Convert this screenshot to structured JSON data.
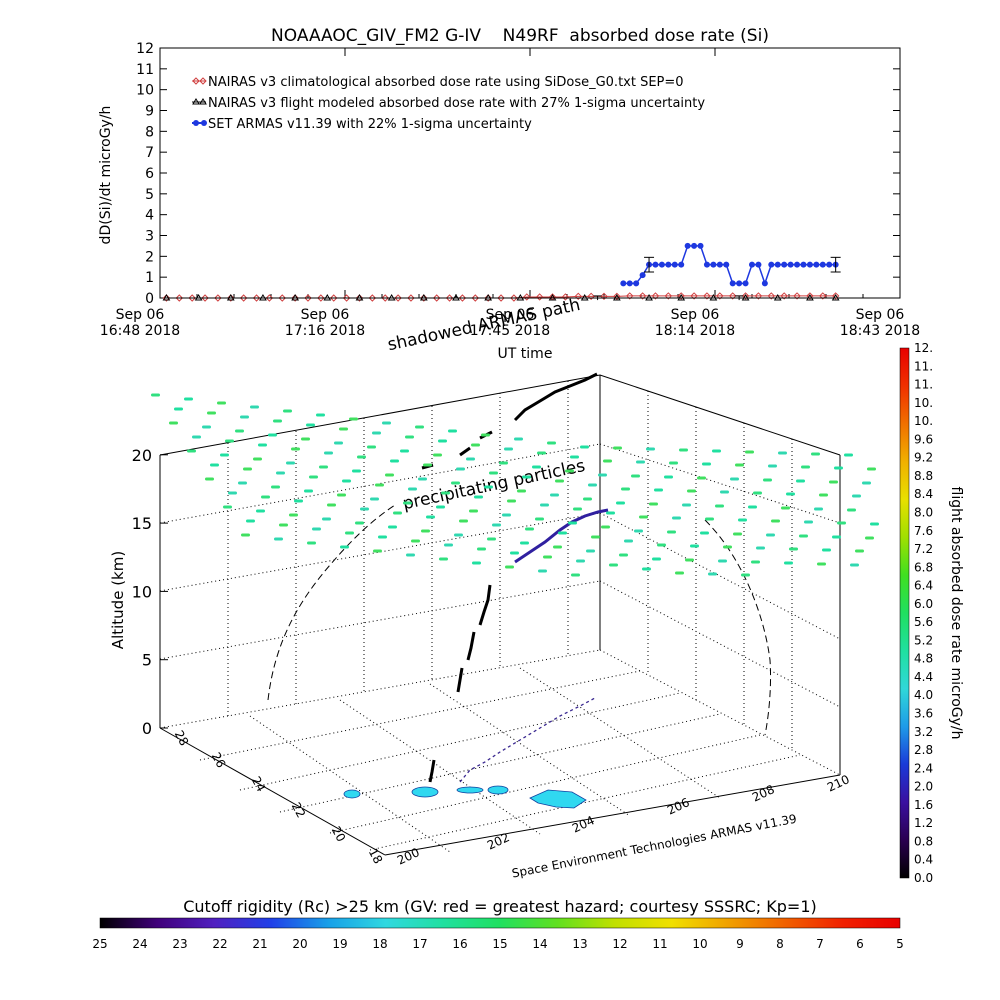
{
  "title": "NOAAAOC_GIV_FM2 G-IV    N49RF  absorbed dose rate (Si)",
  "chart_data": [
    {
      "type": "line",
      "ylabel": "dD(Si)/dt microGy/h",
      "xlabel": "UT time",
      "ylim": [
        0,
        12
      ],
      "yticks": [
        "0",
        "1",
        "2",
        "3",
        "4",
        "5",
        "6",
        "7",
        "8",
        "9",
        "10",
        "11",
        "12"
      ],
      "xticks": [
        {
          "date": "Sep 06",
          "time": "16:48 2018"
        },
        {
          "date": "Sep 06",
          "time": "17:16 2018"
        },
        {
          "date": "Sep 06",
          "time": "17:45 2018"
        },
        {
          "date": "Sep 06",
          "time": "18:14 2018"
        },
        {
          "date": "Sep 06",
          "time": "18:43 2018"
        }
      ],
      "xrange_minutes": [
        0,
        115
      ],
      "legend_position": "top-left",
      "series": [
        {
          "name": "NAIRAS v3 climatological absorbed dose rate using SiDose_G0.txt SEP=0",
          "color": "#d04040",
          "marker": "diamond",
          "x_minutes": [
            1,
            3,
            5,
            7,
            9,
            11,
            13,
            15,
            17,
            19,
            21,
            23,
            25,
            27,
            29,
            31,
            33,
            35,
            37,
            39,
            41,
            43,
            45,
            47,
            49,
            51,
            53,
            55,
            57,
            59,
            61,
            63,
            65,
            67,
            69,
            71,
            73,
            75,
            77,
            79,
            81,
            83,
            85,
            87,
            89,
            91,
            93,
            95,
            97,
            99,
            101,
            103,
            105
          ],
          "values": [
            0,
            0,
            0,
            0,
            0,
            0,
            0,
            0,
            0,
            0,
            0,
            0,
            0,
            0,
            0,
            0,
            0,
            0,
            0,
            0,
            0,
            0,
            0,
            0,
            0,
            0,
            0,
            0,
            0.05,
            0.05,
            0.05,
            0.05,
            0.08,
            0.08,
            0.08,
            0.08,
            0.1,
            0.1,
            0.1,
            0.1,
            0.1,
            0.1,
            0.1,
            0.1,
            0.1,
            0.1,
            0.1,
            0.1,
            0.1,
            0.1,
            0.1,
            0.1,
            0.1
          ]
        },
        {
          "name": "NAIRAS v3 flight modeled absorbed dose rate with 27% 1-sigma uncertainty",
          "color": "#000000",
          "marker": "triangle",
          "x_minutes": [
            1,
            6,
            11,
            16,
            21,
            26,
            31,
            36,
            41,
            46,
            51,
            56,
            61,
            66,
            71,
            76,
            81,
            86,
            91,
            96,
            101,
            105
          ],
          "values": [
            0,
            0,
            0,
            0,
            0,
            0,
            0,
            0,
            0,
            0,
            0,
            0,
            0,
            0,
            0,
            0,
            0,
            0,
            0,
            0,
            0,
            0
          ]
        },
        {
          "name": "SET ARMAS v11.39 with 22% 1-sigma uncertainty",
          "color": "#1e38e0",
          "marker": "circle",
          "x_minutes": [
            72,
            73,
            74,
            75,
            76,
            77,
            78,
            79,
            80,
            81,
            82,
            83,
            84,
            85,
            86,
            87,
            88,
            89,
            90,
            91,
            92,
            93,
            94,
            95,
            96,
            97,
            98,
            99,
            100,
            101,
            102,
            103,
            104,
            105
          ],
          "values": [
            0.7,
            0.7,
            0.7,
            1.1,
            1.6,
            1.6,
            1.6,
            1.6,
            1.6,
            1.6,
            2.5,
            2.5,
            2.5,
            1.6,
            1.6,
            1.6,
            1.6,
            0.7,
            0.7,
            0.7,
            1.6,
            1.6,
            0.7,
            1.6,
            1.6,
            1.6,
            1.6,
            1.6,
            1.6,
            1.6,
            1.6,
            1.6,
            1.6,
            1.6
          ],
          "error_bars_minutes": [
            76,
            105
          ],
          "error_22pct": true
        }
      ]
    },
    {
      "type": "scatter3d",
      "zlabel": "Altitude (km)",
      "zticks": [
        "0",
        "5",
        "10",
        "15",
        "20"
      ],
      "lat_ticks": [
        "18",
        "20",
        "22",
        "24",
        "26",
        "28"
      ],
      "lon_ticks": [
        "200",
        "202",
        "204",
        "206",
        "208",
        "210"
      ],
      "annotations": [
        "shadowed ARMAS path",
        "precipitating particles"
      ],
      "credit": "Space Environment Technologies ARMAS v11.39"
    }
  ],
  "right_colorbar": {
    "label": "flight absorbed dose rate microGy/h",
    "ticks": [
      "0.0",
      "0.4",
      "0.8",
      "1.2",
      "1.6",
      "2.0",
      "2.4",
      "2.8",
      "3.2",
      "3.6",
      "4.0",
      "4.4",
      "4.8",
      "5.2",
      "5.6",
      "6.0",
      "6.4",
      "6.8",
      "7.2",
      "7.6",
      "8.0",
      "8.4",
      "8.8",
      "9.2",
      "9.6",
      "10.",
      "10.",
      "11.",
      "11.",
      "12."
    ],
    "colors_bottom_to_top": [
      "#000000",
      "#2a0050",
      "#3a10a0",
      "#1a3ad8",
      "#1e9be8",
      "#30d8d8",
      "#20e0a0",
      "#20e060",
      "#40e020",
      "#a0e000",
      "#e8e000",
      "#f0b000",
      "#f07000",
      "#f03000",
      "#e80000"
    ]
  },
  "bottom_colorbar": {
    "label": "Cutoff rigidity (Rc) >25 km (GV: red = greatest hazard; courtesy SSSRC; Kp=1)",
    "ticks": [
      "25",
      "24",
      "23",
      "22",
      "21",
      "20",
      "19",
      "18",
      "17",
      "16",
      "15",
      "14",
      "13",
      "12",
      "11",
      "10",
      "9",
      "8",
      "7",
      "6",
      "5"
    ],
    "colors_left_to_right": [
      "#000000",
      "#40007a",
      "#5020c0",
      "#2040e8",
      "#18a0e8",
      "#30d8e0",
      "#20e0a0",
      "#20e060",
      "#60e020",
      "#c0e000",
      "#f0e000",
      "#f0a000",
      "#f06000",
      "#f02000",
      "#e80000"
    ]
  }
}
